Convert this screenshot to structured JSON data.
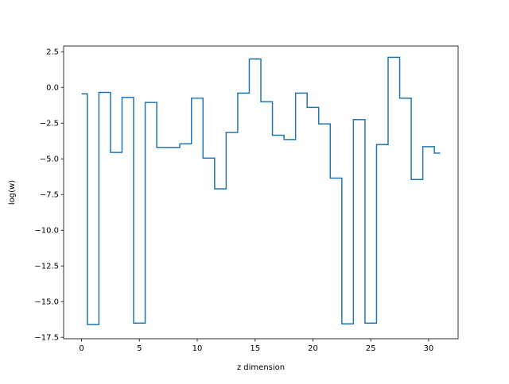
{
  "chart_data": {
    "type": "line",
    "drawstyle": "steps-mid",
    "title": "",
    "xlabel": "z dimension",
    "ylabel": "log(w)",
    "xlim": [
      -1.55,
      32.55
    ],
    "ylim": [
      -17.6,
      2.9
    ],
    "x_ticks": [
      0,
      5,
      10,
      15,
      20,
      25,
      30
    ],
    "x_tick_labels": [
      "0",
      "5",
      "10",
      "15",
      "20",
      "25",
      "30"
    ],
    "y_ticks": [
      2.5,
      0.0,
      -2.5,
      -5.0,
      -7.5,
      -10.0,
      -12.5,
      -15.0,
      -17.5
    ],
    "y_tick_labels": [
      "2.5",
      "0.0",
      "−2.5",
      "−5.0",
      "−7.5",
      "−10.0",
      "−12.5",
      "−15.0",
      "−17.5"
    ],
    "grid": false,
    "series": [
      {
        "color": "#1f77b4",
        "x": [
          0,
          1,
          2,
          3,
          4,
          5,
          6,
          7,
          8,
          9,
          10,
          11,
          12,
          13,
          14,
          15,
          16,
          17,
          18,
          19,
          20,
          21,
          22,
          23,
          24,
          25,
          26,
          27,
          28,
          29,
          30,
          31
        ],
        "y": [
          -0.45,
          -16.6,
          -0.35,
          -4.55,
          -0.7,
          -16.5,
          -1.05,
          -4.2,
          -4.2,
          -3.95,
          -0.75,
          -4.95,
          -7.1,
          -3.15,
          -0.4,
          2.0,
          -1.0,
          -3.35,
          -3.65,
          -0.4,
          -1.4,
          -2.55,
          -6.35,
          -16.55,
          -2.25,
          -16.5,
          -4.0,
          2.1,
          -0.75,
          -6.45,
          -4.15,
          -4.6
        ]
      }
    ]
  }
}
